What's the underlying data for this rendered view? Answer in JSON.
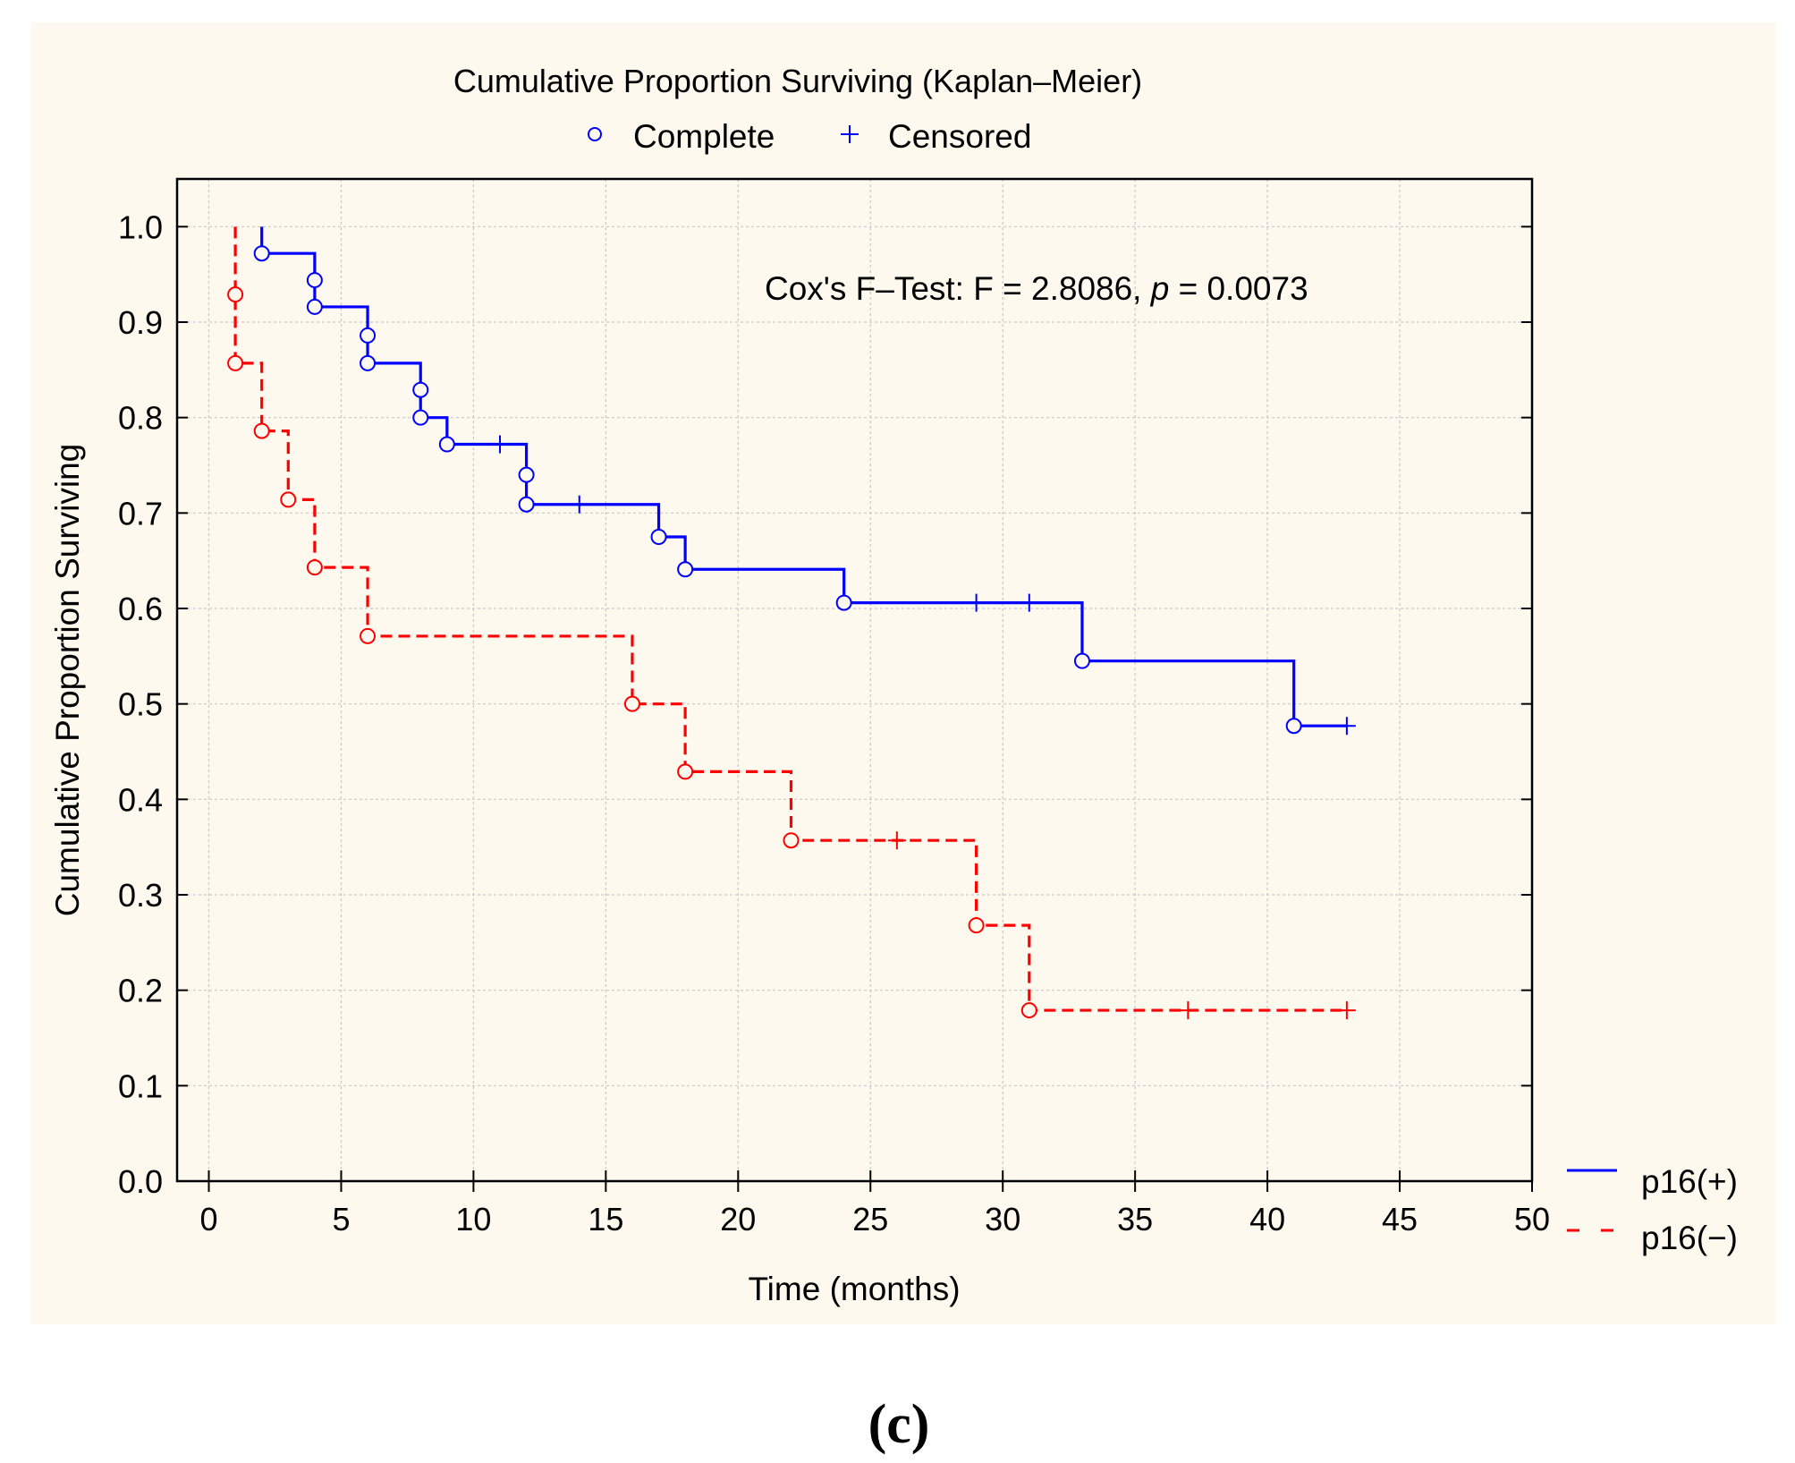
{
  "chart_data": {
    "type": "line",
    "subtype": "kaplan-meier-step",
    "title": "Cumulative Proportion Surviving (Kaplan–Meier)",
    "marker_legend": {
      "complete": "Complete",
      "censored": "Censored"
    },
    "xlabel": "Time (months)",
    "ylabel": "Cumulative Proportion Surviving",
    "xlim": [
      -1.2,
      50
    ],
    "ylim": [
      0,
      1.05
    ],
    "xticks": [
      0,
      5,
      10,
      15,
      20,
      25,
      30,
      35,
      40,
      45,
      50
    ],
    "yticks": [
      "0.0",
      "0.1",
      "0.2",
      "0.3",
      "0.4",
      "0.5",
      "0.6",
      "0.7",
      "0.8",
      "0.9",
      "1.0"
    ],
    "grid": true,
    "annotation": {
      "prefix": "Cox's F–Test: F = 2.8086, ",
      "italic": "p",
      "suffix": " = 0.0073"
    },
    "legend_position": "right",
    "series": [
      {
        "name": "p16(+)",
        "color": "#0000ff",
        "style": "solid",
        "steps": [
          [
            0,
            1.0
          ],
          [
            2,
            0.972
          ],
          [
            4,
            0.916
          ],
          [
            6,
            0.857
          ],
          [
            8,
            0.8
          ],
          [
            9,
            0.772
          ],
          [
            12,
            0.709
          ],
          [
            17,
            0.675
          ],
          [
            18,
            0.641
          ],
          [
            24,
            0.606
          ],
          [
            33,
            0.545
          ],
          [
            41,
            0.477
          ],
          [
            43,
            0.477
          ]
        ],
        "complete": [
          [
            2,
            0.972
          ],
          [
            4,
            0.944
          ],
          [
            4,
            0.916
          ],
          [
            6,
            0.886
          ],
          [
            6,
            0.857
          ],
          [
            8,
            0.829
          ],
          [
            8,
            0.8
          ],
          [
            9,
            0.772
          ],
          [
            12,
            0.74
          ],
          [
            12,
            0.709
          ],
          [
            17,
            0.675
          ],
          [
            18,
            0.641
          ],
          [
            24,
            0.606
          ],
          [
            33,
            0.545
          ],
          [
            41,
            0.477
          ]
        ],
        "censored": [
          [
            11,
            0.772
          ],
          [
            14,
            0.709
          ],
          [
            29,
            0.606
          ],
          [
            31,
            0.606
          ],
          [
            43,
            0.477
          ]
        ]
      },
      {
        "name": "p16(−)",
        "color": "#ff0000",
        "style": "dashed",
        "steps": [
          [
            0,
            1.0
          ],
          [
            1,
            0.857
          ],
          [
            2,
            0.786
          ],
          [
            3,
            0.714
          ],
          [
            4,
            0.643
          ],
          [
            6,
            0.571
          ],
          [
            16,
            0.5
          ],
          [
            18,
            0.429
          ],
          [
            22,
            0.357
          ],
          [
            29,
            0.268
          ],
          [
            31,
            0.179
          ],
          [
            43,
            0.179
          ]
        ],
        "complete": [
          [
            1,
            0.929
          ],
          [
            1,
            0.857
          ],
          [
            2,
            0.786
          ],
          [
            3,
            0.714
          ],
          [
            4,
            0.643
          ],
          [
            6,
            0.571
          ],
          [
            16,
            0.5
          ],
          [
            18,
            0.429
          ],
          [
            22,
            0.357
          ],
          [
            29,
            0.268
          ],
          [
            31,
            0.179
          ]
        ],
        "censored": [
          [
            26,
            0.357
          ],
          [
            37,
            0.179
          ],
          [
            43,
            0.179
          ]
        ]
      }
    ]
  },
  "panel_label": "(c)"
}
